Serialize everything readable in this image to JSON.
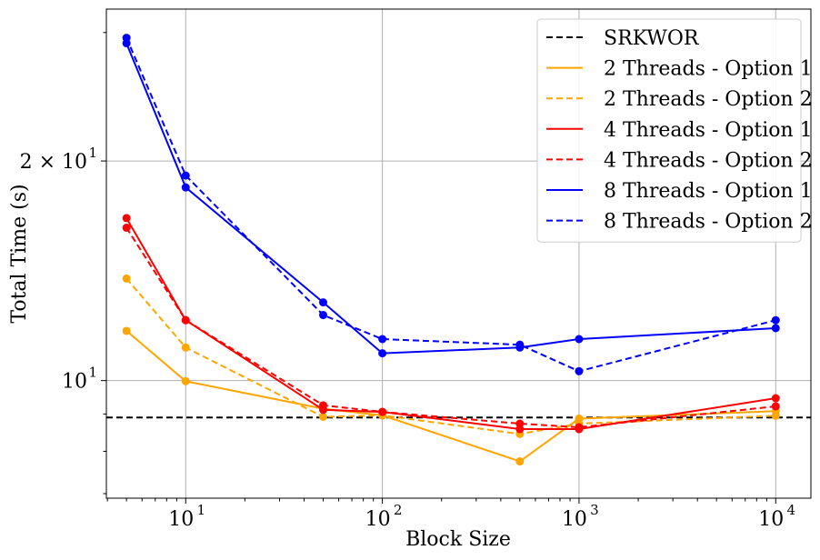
{
  "chart_data": {
    "type": "line",
    "x_scale": "log",
    "y_scale": "log",
    "xlabel": "Block Size",
    "ylabel": "Total Time (s)",
    "xlim": [
      3.95,
      15100
    ],
    "ylim": [
      6.9,
      32.3
    ],
    "grid": true,
    "legend_position": "top-right",
    "x_ticks": [
      {
        "value": 10,
        "base": "10",
        "exp": "1"
      },
      {
        "value": 100,
        "base": "10",
        "exp": "2"
      },
      {
        "value": 1000,
        "base": "10",
        "exp": "3"
      },
      {
        "value": 10000,
        "base": "10",
        "exp": "4"
      }
    ],
    "y_ticks": [
      {
        "value": 10,
        "main": "10",
        "exp": "1"
      },
      {
        "value": 20,
        "main": "2 × 10",
        "exp": "1"
      }
    ],
    "reference_line": {
      "name": "SRKWOR",
      "value": 8.9,
      "color": "#000000",
      "dash": true
    },
    "x": [
      5,
      10,
      50,
      100,
      500,
      1000,
      10000
    ],
    "series": [
      {
        "name": "2 Threads - Option 1",
        "color": "#ffa500",
        "dash": false,
        "values": [
          11.7,
          9.98,
          9.15,
          8.96,
          7.75,
          8.87,
          9.08
        ]
      },
      {
        "name": "2 Threads - Option 2",
        "color": "#ffa500",
        "dash": true,
        "values": [
          13.8,
          11.1,
          8.92,
          8.96,
          8.45,
          8.73,
          8.95
        ]
      },
      {
        "name": "4 Threads - Option 1",
        "color": "#ff0000",
        "dash": false,
        "values": [
          16.7,
          12.1,
          9.12,
          9.06,
          8.58,
          8.58,
          9.46
        ]
      },
      {
        "name": "4 Threads - Option 2",
        "color": "#ff0000",
        "dash": true,
        "values": [
          16.2,
          12.1,
          9.25,
          9.06,
          8.73,
          8.63,
          9.22
        ]
      },
      {
        "name": "8 Threads - Option 1",
        "color": "#0000ff",
        "dash": false,
        "values": [
          29.0,
          18.4,
          12.8,
          10.9,
          11.1,
          11.4,
          11.8
        ]
      },
      {
        "name": "8 Threads - Option 2",
        "color": "#0000ff",
        "dash": true,
        "values": [
          29.5,
          19.1,
          12.3,
          11.4,
          11.2,
          10.3,
          12.1
        ]
      }
    ]
  }
}
